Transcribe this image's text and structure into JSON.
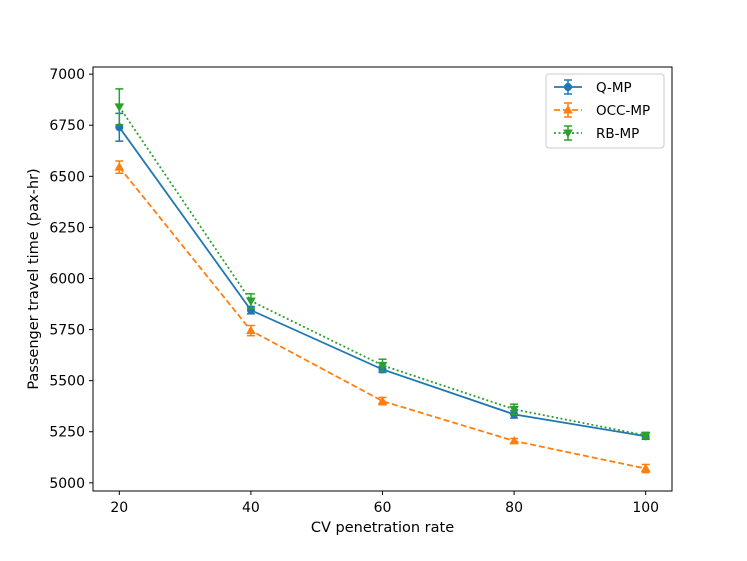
{
  "chart_data": {
    "type": "line",
    "xlabel": "CV penetration rate",
    "ylabel": "Passenger travel time (pax-hr)",
    "x": [
      20,
      40,
      60,
      80,
      100
    ],
    "xlim": [
      16,
      104
    ],
    "ylim": [
      4960,
      7035
    ],
    "xticks": [
      20,
      40,
      60,
      80,
      100
    ],
    "yticks": [
      5000,
      5250,
      5500,
      5750,
      6000,
      6250,
      6500,
      6750,
      7000
    ],
    "grid": false,
    "legend_position": "top-right",
    "series": [
      {
        "name": "Q-MP",
        "color": "#1f77b4",
        "linestyle": "solid",
        "marker": "circle",
        "values": [
          6740,
          5845,
          5555,
          5335,
          5228
        ],
        "errors": [
          68,
          18,
          15,
          18,
          15
        ]
      },
      {
        "name": "OCC-MP",
        "color": "#ff7f0e",
        "linestyle": "dashed",
        "marker": "triangle-up",
        "values": [
          6545,
          5745,
          5400,
          5205,
          5070
        ],
        "errors": [
          30,
          25,
          18,
          12,
          20
        ]
      },
      {
        "name": "RB-MP",
        "color": "#2ca02c",
        "linestyle": "dotted",
        "marker": "triangle-down",
        "values": [
          6840,
          5890,
          5575,
          5360,
          5232
        ],
        "errors": [
          88,
          35,
          30,
          25,
          15
        ]
      }
    ]
  }
}
